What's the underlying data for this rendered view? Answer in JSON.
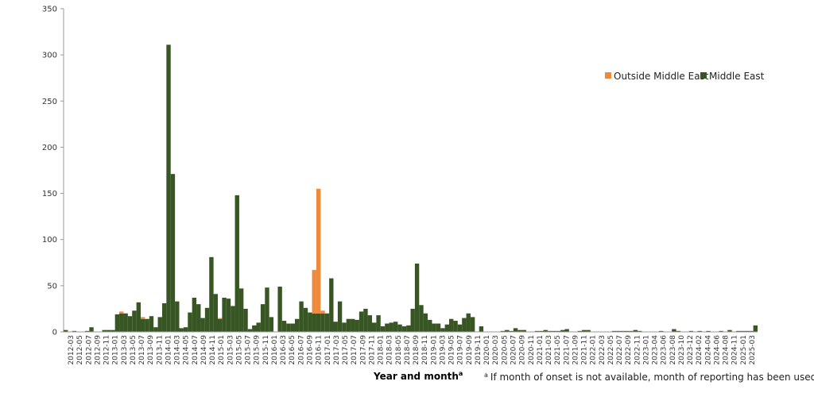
{
  "chart_data": {
    "type": "bar",
    "stacked": true,
    "xlabel": "Year and month",
    "xlabel_superscript": "a",
    "ylabel": "",
    "ylim": [
      0,
      350
    ],
    "yticks": [
      0,
      50,
      100,
      150,
      200,
      250,
      300,
      350
    ],
    "grid": false,
    "legend_position": "top-right",
    "footnote_marker": "a",
    "footnote": "If month of onset is not available, month of reporting has been used.",
    "start_month": "2012-03",
    "tick_labels": [
      "2012-03",
      "2012-05",
      "2012-07",
      "2012-09",
      "2012-11",
      "2013-01",
      "2013-03",
      "2013-05",
      "2013-07",
      "2013-09",
      "2013-11",
      "2014-01",
      "2014-03",
      "2014-05",
      "2014-07",
      "2014-09",
      "2014-11",
      "2015-01",
      "2015-03",
      "2015-05",
      "2015-07",
      "2015-09",
      "2015-11",
      "2016-01",
      "2016-03",
      "2016-05",
      "2016-07",
      "2016-09",
      "2016-11",
      "2017-01",
      "2017-03",
      "2017-05",
      "2017-07",
      "2017-09",
      "2017-11",
      "2018-01",
      "2018-03",
      "2018-05",
      "2018-07",
      "2018-09",
      "2018-11",
      "2019-01",
      "2019-03",
      "2019-05",
      "2019-07",
      "2019-09",
      "2019-11",
      "2020-01",
      "2020-03",
      "2020-05",
      "2020-07",
      "2020-09",
      "2020-11",
      "2021-01",
      "2021-03",
      "2021-05",
      "2021-07",
      "2021-09",
      "2021-11",
      "2022-01",
      "2022-03",
      "2022-05",
      "2022-07",
      "2022-09",
      "2022-11",
      "2023-01",
      "2023-04",
      "2023-06",
      "2023-08",
      "2023-10",
      "2023-12",
      "2024-02",
      "2024-04",
      "2024-06",
      "2024-08",
      "2024-11",
      "2025-01",
      "2025-03"
    ],
    "series": [
      {
        "name": "Outside Middle East",
        "color": "#ed8a3c",
        "values": [
          0,
          0,
          0,
          0,
          0,
          0,
          0,
          0,
          0,
          0,
          0,
          0,
          0,
          2,
          0,
          0,
          0,
          0,
          2,
          0,
          0,
          0,
          0,
          0,
          0,
          0,
          0,
          0,
          0,
          0,
          0,
          0,
          0,
          0,
          0,
          0,
          1,
          0,
          0,
          0,
          0,
          0,
          0,
          0,
          0,
          0,
          0,
          0,
          0,
          0,
          0,
          0,
          0,
          0,
          0,
          0,
          0,
          0,
          47,
          135,
          3,
          0,
          0,
          0,
          0,
          0,
          0,
          0,
          0,
          0,
          0,
          0,
          0,
          0,
          0,
          0,
          0,
          0,
          0,
          0,
          0,
          0,
          0,
          0,
          0,
          0,
          0,
          0,
          0,
          0,
          0,
          0,
          0,
          0,
          0,
          0,
          0,
          0,
          0,
          0,
          0,
          0,
          0,
          0,
          0,
          0,
          0,
          0,
          0,
          0,
          0,
          0,
          0,
          0,
          0,
          0,
          0,
          0,
          0,
          0,
          0,
          0,
          0,
          0,
          0,
          0,
          0,
          0,
          0,
          0,
          0,
          0,
          0,
          0,
          0,
          0,
          0,
          0,
          0,
          0,
          0,
          0,
          0,
          0,
          0,
          0,
          0,
          0,
          0,
          0,
          0,
          0,
          0,
          0,
          0,
          0,
          0,
          0
        ]
      },
      {
        "name": "Middle East",
        "color": "#375623",
        "values": [
          2,
          0,
          1,
          0,
          0,
          1,
          5,
          0,
          0,
          2,
          2,
          2,
          19,
          20,
          20,
          17,
          23,
          32,
          14,
          14,
          17,
          5,
          16,
          31,
          311,
          171,
          33,
          4,
          5,
          21,
          37,
          30,
          15,
          26,
          81,
          41,
          14,
          37,
          36,
          28,
          148,
          47,
          25,
          3,
          7,
          10,
          30,
          48,
          16,
          0,
          49,
          12,
          9,
          9,
          14,
          33,
          26,
          21,
          20,
          20,
          20,
          20,
          58,
          11,
          33,
          10,
          14,
          14,
          13,
          22,
          25,
          18,
          10,
          18,
          6,
          9,
          10,
          11,
          8,
          6,
          7,
          25,
          74,
          29,
          20,
          13,
          9,
          9,
          4,
          8,
          14,
          12,
          8,
          15,
          20,
          16,
          0,
          6,
          0,
          0,
          0,
          0,
          1,
          2,
          1,
          4,
          2,
          2,
          0,
          0,
          1,
          1,
          2,
          1,
          1,
          1,
          2,
          3,
          0,
          0,
          1,
          2,
          2,
          0,
          0,
          0,
          0,
          0,
          1,
          1,
          1,
          1,
          1,
          2,
          1,
          0,
          0,
          0,
          0,
          1,
          0,
          0,
          3,
          1,
          0,
          0,
          1,
          0,
          1,
          0,
          1,
          0,
          0,
          1,
          0,
          2,
          0,
          1,
          1,
          1,
          1,
          7
        ]
      }
    ]
  }
}
